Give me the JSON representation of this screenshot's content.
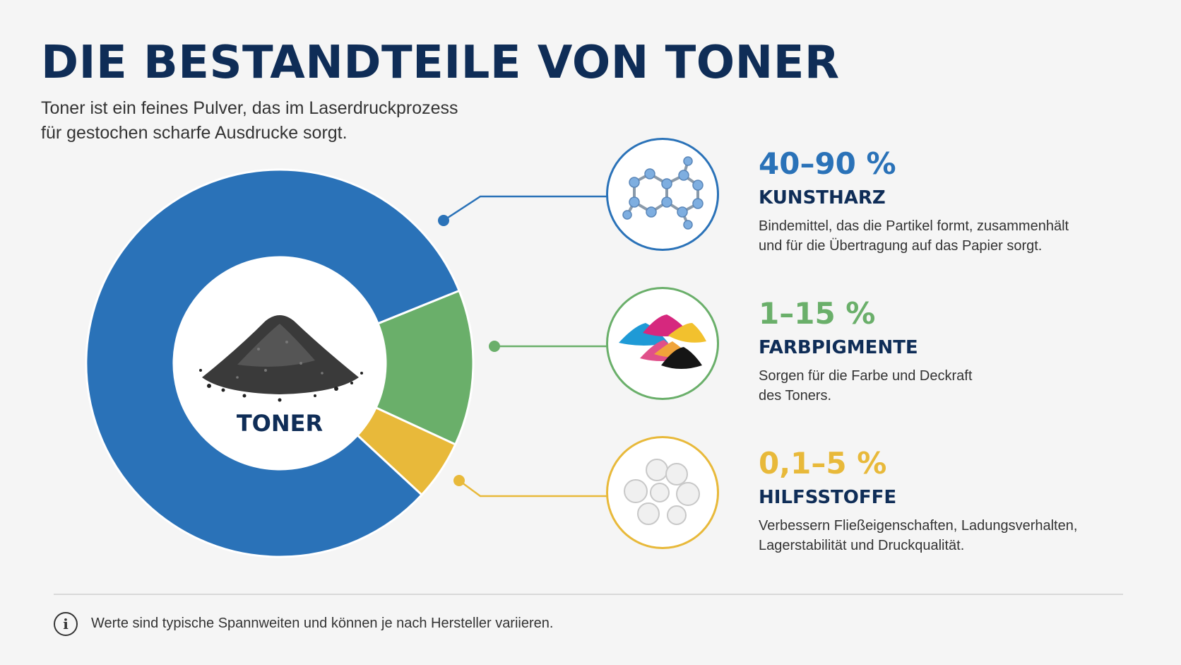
{
  "title": "DIE BESTANDTEILE VON TONER",
  "subtitle_line1": "Toner ist ein feines Pulver, das im Laserdruckprozess",
  "subtitle_line2": "für gestochen scharfe Ausdrucke sorgt.",
  "donut": {
    "center_label": "TONER",
    "segments": [
      {
        "name": "Kunstharz",
        "share": 0.82,
        "color": "#2a72b8"
      },
      {
        "name": "Farbpigmente",
        "share": 0.13,
        "color": "#6aaf6a"
      },
      {
        "name": "Hilfsstoffe",
        "share": 0.05,
        "color": "#e8b93a"
      }
    ]
  },
  "components": [
    {
      "percent": "40–90 %",
      "name": "KUNSTHARZ",
      "desc_line1": "Bindemittel, das die Partikel formt, zusammenhält",
      "desc_line2": "und für die Übertragung auf das Papier sorgt.",
      "color": "#2a72b8",
      "icon": "molecule-icon"
    },
    {
      "percent": "1–15 %",
      "name": "FARBPIGMENTE",
      "desc_line1": "Sorgen für die Farbe und Deckraft",
      "desc_line2": "des Toners.",
      "color": "#6aaf6a",
      "icon": "pigment-piles-icon"
    },
    {
      "percent": "0,1–5 %",
      "name": "HILFSSTOFFE",
      "desc_line1": "Verbessern Fließeigenschaften, Ladungsverhalten,",
      "desc_line2": "Lagerstabilität und Druckqualität.",
      "color": "#e8b93a",
      "icon": "additive-spheres-icon"
    }
  ],
  "footnote": "Werte sind typische Spannweiten und können je nach Hersteller variieren."
}
